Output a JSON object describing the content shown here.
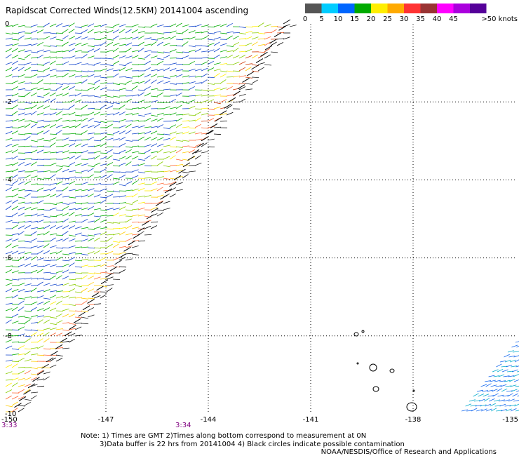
{
  "title": "Rapidscat Corrected Winds(12.5KM) 20141004 ascending",
  "legend": {
    "units": ">50 knots",
    "stops": [
      {
        "label": "0",
        "color": "#555555"
      },
      {
        "label": "5",
        "color": "#00ccff"
      },
      {
        "label": "10",
        "color": "#0066ff"
      },
      {
        "label": "15",
        "color": "#00aa00"
      },
      {
        "label": "20",
        "color": "#ffee00"
      },
      {
        "label": "25",
        "color": "#ffaa00"
      },
      {
        "label": "30",
        "color": "#ff3333"
      },
      {
        "label": "35",
        "color": "#993333"
      },
      {
        "label": "40",
        "color": "#ff00ff"
      },
      {
        "label": "45",
        "color": "#aa00dd"
      },
      {
        "label": "",
        "color": "#550099"
      }
    ]
  },
  "axes": {
    "lon_labels": [
      "-150",
      "-147",
      "-144",
      "-141",
      "-138",
      "-135"
    ],
    "lat_labels": [
      "0",
      "-2",
      "-4",
      "-6",
      "-8",
      "-10"
    ]
  },
  "times": [
    "3:33",
    "3:34"
  ],
  "notes": {
    "line1": "Note: 1) Times are GMT 2)Times along bottom correspond to measurement at 0N",
    "line2": "3)Data buffer is 22 hrs from 20141004 4) Black circles indicate possible contamination"
  },
  "credit": "NOAA/NESDIS/Office of Research and Applications",
  "map_data": {
    "projection": "lat-lon",
    "lon_range": [
      -150,
      -135
    ],
    "lat_range": [
      -10,
      0
    ],
    "wind_color_scale": [
      "#0000cc",
      "#00aa00",
      "#ffee00",
      "#ff3333",
      "#000000"
    ]
  }
}
